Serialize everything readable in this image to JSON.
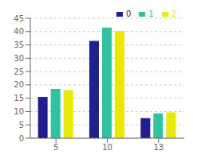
{
  "chart_data": {
    "type": "bar",
    "categories": [
      "5",
      "10",
      "13"
    ],
    "series": [
      {
        "name": "0",
        "color": "#1f1f8f",
        "values": [
          15.5,
          36.5,
          7.5
        ]
      },
      {
        "name": "1",
        "color": "#2ec4a0",
        "values": [
          18.5,
          41.5,
          9.3
        ]
      },
      {
        "name": "2",
        "color": "#eaea00",
        "values": [
          18.0,
          40.2,
          9.7
        ]
      }
    ],
    "ylim": [
      0,
      45
    ],
    "yticks": [
      0,
      5,
      10,
      15,
      20,
      25,
      30,
      35,
      40,
      45
    ],
    "grid": true,
    "legend": "upper right"
  }
}
